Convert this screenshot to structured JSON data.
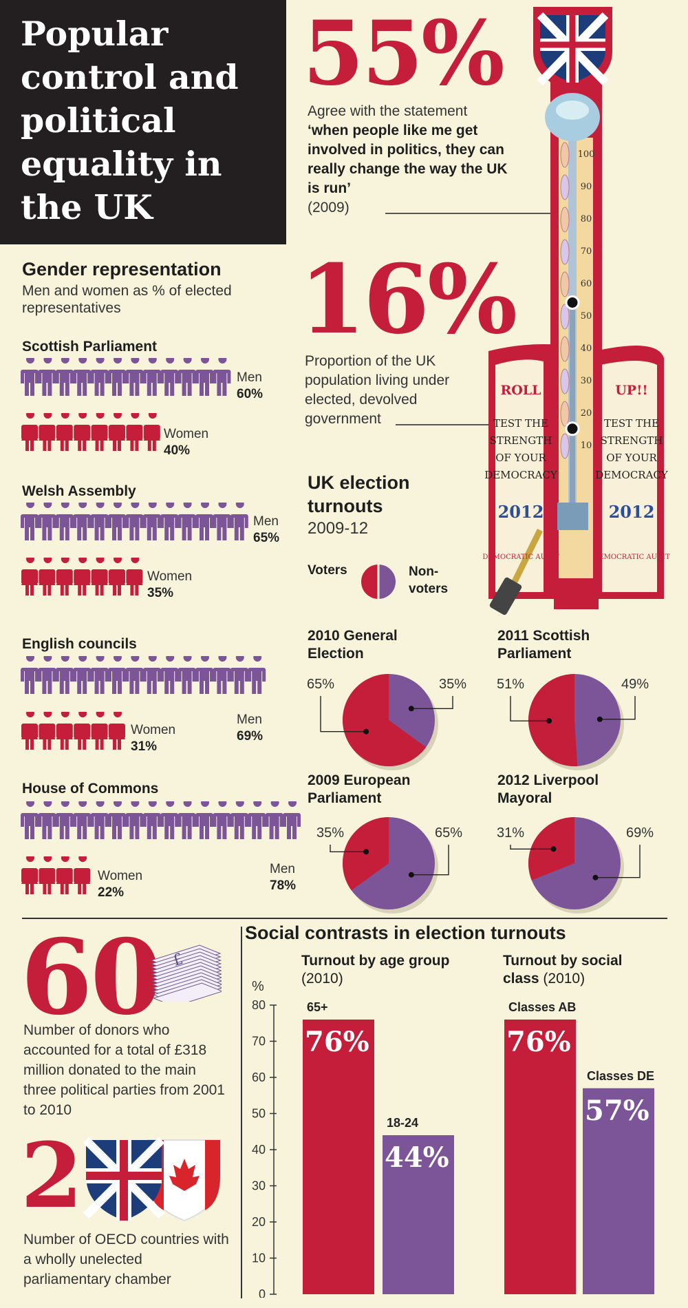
{
  "title": "Popular control and political equality in the UK",
  "stat1": {
    "value": "55%",
    "line1": "Agree with the statement",
    "quote": "‘when people like me get involved in politics, they can really change the way the UK is run’",
    "year": "(2009)"
  },
  "stat2": {
    "value": "16%",
    "text": "Proportion of the UK population living under elected, devolved government"
  },
  "strength_tester": {
    "scale": [
      "100",
      "90",
      "80",
      "70",
      "60",
      "50",
      "40",
      "30",
      "20",
      "10"
    ],
    "markers": [
      55,
      16
    ],
    "left_sign": {
      "top": "ROLL",
      "lines": [
        "TEST THE",
        "STRENGTH",
        "OF YOUR",
        "DEMOCRACY"
      ],
      "year": "2012",
      "seal": "DEMOCRATIC AUDIT"
    },
    "right_sign": {
      "top": "UP!!",
      "lines": [
        "TEST THE",
        "STRENGTH",
        "OF YOUR",
        "DEMOCRACY"
      ],
      "year": "2012",
      "seal": "DEMOCRATIC AUDIT"
    },
    "colors": {
      "red": "#c41e3a",
      "purple": "#7b5597",
      "cream": "#f8f4dc"
    }
  },
  "gender": {
    "heading": "Gender representation",
    "subheading": "Men and women as % of elected representatives",
    "men_label": "Men",
    "women_label": "Women"
  },
  "election": {
    "heading": "UK election turnouts",
    "period": "2009-12",
    "legend_voters": "Voters",
    "legend_nonvoters": "Non-voters"
  },
  "donors": {
    "value": "60",
    "text": "Number of donors who accounted for a total of £318 million donated to the main three political parties from 2001 to 2010"
  },
  "oecd": {
    "value": "2",
    "text": "Number of OECD countries with a wholly unelected parliamentary chamber"
  },
  "social": {
    "heading": "Social contrasts in election turnouts",
    "age_title": "Turnout by age group",
    "age_year": "(2010)",
    "class_title": "Turnout by social class",
    "class_year": "(2010)",
    "unit": "%"
  },
  "chart_data": [
    {
      "type": "pictogram",
      "title": "Scottish Parliament",
      "series": [
        {
          "name": "Men",
          "value": 60,
          "label": "60%"
        },
        {
          "name": "Women",
          "value": 40,
          "label": "40%"
        }
      ]
    },
    {
      "type": "pictogram",
      "title": "Welsh Assembly",
      "series": [
        {
          "name": "Men",
          "value": 65,
          "label": "65%"
        },
        {
          "name": "Women",
          "value": 35,
          "label": "35%"
        }
      ]
    },
    {
      "type": "pictogram",
      "title": "English councils",
      "series": [
        {
          "name": "Men",
          "value": 69,
          "label": "69%"
        },
        {
          "name": "Women",
          "value": 31,
          "label": "31%"
        }
      ]
    },
    {
      "type": "pictogram",
      "title": "House of Commons",
      "series": [
        {
          "name": "Men",
          "value": 78,
          "label": "78%"
        },
        {
          "name": "Women",
          "value": 22,
          "label": "22%"
        }
      ]
    },
    {
      "type": "pie",
      "title": "2010 General Election",
      "slices": [
        {
          "name": "Voters",
          "value": 65,
          "label": "65%"
        },
        {
          "name": "Non-voters",
          "value": 35,
          "label": "35%"
        }
      ]
    },
    {
      "type": "pie",
      "title": "2011 Scottish Parliament",
      "slices": [
        {
          "name": "Voters",
          "value": 51,
          "label": "51%"
        },
        {
          "name": "Non-voters",
          "value": 49,
          "label": "49%"
        }
      ]
    },
    {
      "type": "pie",
      "title": "2009 European Parliament",
      "slices": [
        {
          "name": "Voters",
          "value": 35,
          "label": "35%"
        },
        {
          "name": "Non-voters",
          "value": 65,
          "label": "65%"
        }
      ]
    },
    {
      "type": "pie",
      "title": "2012 Liverpool Mayoral",
      "slices": [
        {
          "name": "Voters",
          "value": 31,
          "label": "31%"
        },
        {
          "name": "Non-voters",
          "value": 69,
          "label": "69%"
        }
      ]
    },
    {
      "type": "bar",
      "title": "Turnout by age group (2010)",
      "ylabel": "%",
      "ylim": [
        0,
        80
      ],
      "yticks": [
        0,
        10,
        20,
        30,
        40,
        50,
        60,
        70,
        80
      ],
      "categories": [
        "65+",
        "18-24"
      ],
      "values": [
        76,
        44
      ],
      "labels": [
        "76%",
        "44%"
      ]
    },
    {
      "type": "bar",
      "title": "Turnout by social class (2010)",
      "ylim": [
        0,
        80
      ],
      "categories": [
        "Classes AB",
        "Classes DE"
      ],
      "values": [
        76,
        57
      ],
      "labels": [
        "76%",
        "57%"
      ]
    }
  ]
}
